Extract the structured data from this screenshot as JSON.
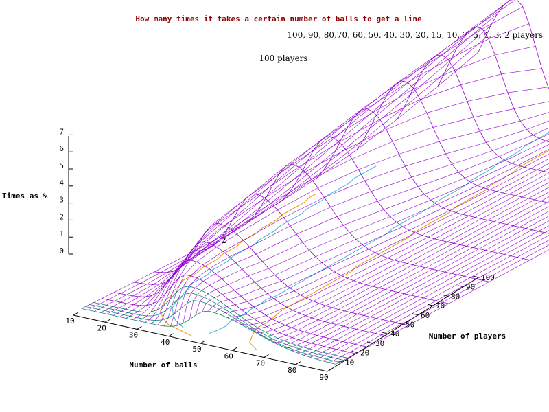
{
  "chart_data": {
    "type": "surface",
    "title": "How many times it takes a certain number of balls to get a line",
    "legend_text": "100, 90, 80,70, 60, 50, 40, 30, 20, 15, 10, 7, 5, 4, 3, 2 players",
    "annotation_top": "100 players",
    "annotation_low": "2",
    "xlabel": "Number of balls",
    "ylabel": "Number of players",
    "zlabel": "Times as %",
    "xticks": [
      "10",
      "20",
      "30",
      "40",
      "50",
      "60",
      "70",
      "80",
      "90"
    ],
    "yticks": [
      "10",
      "20",
      "30",
      "40",
      "50",
      "60",
      "70",
      "80",
      "90",
      "100"
    ],
    "zticks": [
      "0",
      "1",
      "2",
      "3",
      "4",
      "5",
      "6",
      "7"
    ],
    "xlim": [
      10,
      90
    ],
    "ylim": [
      0,
      100
    ],
    "zlim": [
      0,
      7
    ],
    "players": [
      100,
      90,
      80,
      70,
      60,
      50,
      40,
      30,
      20,
      15,
      10,
      7,
      5,
      4,
      3,
      2
    ],
    "peak_balls": [
      22,
      23,
      24,
      25,
      26,
      27,
      28,
      29,
      30,
      32,
      34,
      37,
      40,
      42,
      45,
      50
    ],
    "peak_values": [
      7.0,
      6.6,
      6.2,
      5.9,
      5.5,
      5.1,
      4.7,
      4.2,
      3.7,
      3.3,
      2.9,
      2.5,
      2.2,
      2.0,
      1.8,
      1.5
    ],
    "contours": [
      {
        "level": "1",
        "color": "#f09000"
      },
      {
        "level": "2",
        "color": "#3fb5d8"
      }
    ],
    "colors": {
      "mesh": "#9400d3",
      "mesh_low": "#008a6e",
      "title": "#8b0000",
      "axis": "#000000"
    },
    "grid": false,
    "view": "3d-surface"
  }
}
